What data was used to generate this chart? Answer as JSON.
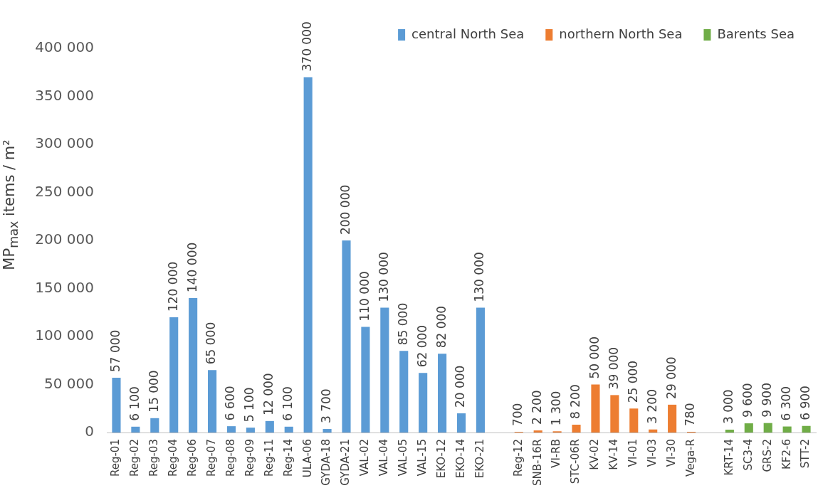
{
  "chart_data": {
    "type": "bar",
    "ylabel": "MP$_{max}$ items / m²",
    "categories": [
      "Reg-01",
      "Reg-02",
      "Reg-03",
      "Reg-04",
      "Reg-06",
      "Reg-07",
      "Reg-08",
      "Reg-09",
      "Reg-11",
      "Reg-14",
      "ULA-06",
      "GYDA-18",
      "GYDA-21",
      "VAL-02",
      "VAL-04",
      "VAL-05",
      "VAL-15",
      "EKO-12",
      "EKO-14",
      "EKO-21",
      null,
      "Reg-12",
      "SNB-16R",
      "VI-RB",
      "STC-06R",
      "KV-02",
      "KV-14",
      "VI-01",
      "VI-03",
      "VI-30",
      "Vega-R",
      null,
      "KRT-14",
      "SC3-4",
      "GRS-2",
      "KF2-6",
      "STT-2"
    ],
    "series": [
      {
        "name": "central North Sea",
        "color": "#5b9bd5",
        "values": [
          57000,
          6100,
          15000,
          120000,
          140000,
          65000,
          6600,
          5100,
          12000,
          6100,
          370000,
          3700,
          200000,
          110000,
          130000,
          85000,
          62000,
          82000,
          20000,
          130000,
          null,
          null,
          null,
          null,
          null,
          null,
          null,
          null,
          null,
          null,
          null,
          null,
          null,
          null,
          null,
          null,
          null
        ]
      },
      {
        "name": "northern North Sea",
        "color": "#ed7d31",
        "values": [
          null,
          null,
          null,
          null,
          null,
          null,
          null,
          null,
          null,
          null,
          null,
          null,
          null,
          null,
          null,
          null,
          null,
          null,
          null,
          null,
          null,
          700,
          2200,
          1300,
          8200,
          50000,
          39000,
          25000,
          3200,
          29000,
          780,
          null,
          null,
          null,
          null,
          null,
          null
        ]
      },
      {
        "name": "Barents Sea",
        "color": "#70ad47",
        "values": [
          null,
          null,
          null,
          null,
          null,
          null,
          null,
          null,
          null,
          null,
          null,
          null,
          null,
          null,
          null,
          null,
          null,
          null,
          null,
          null,
          null,
          null,
          null,
          null,
          null,
          null,
          null,
          null,
          null,
          null,
          null,
          null,
          3000,
          9600,
          9900,
          6300,
          6900
        ]
      }
    ],
    "ylim": [
      0,
      400000
    ],
    "yticks": [
      {
        "value": 0,
        "label": "0"
      },
      {
        "value": 50000,
        "label": "50 000"
      },
      {
        "value": 100000,
        "label": "100 000"
      },
      {
        "value": 150000,
        "label": "150 000"
      },
      {
        "value": 200000,
        "label": "200 000"
      },
      {
        "value": 250000,
        "label": "250 000"
      },
      {
        "value": 300000,
        "label": "300 000"
      },
      {
        "value": 350000,
        "label": "350 000"
      },
      {
        "value": 400000,
        "label": "400 000"
      }
    ],
    "grid": false,
    "legend": "top right",
    "data_labels": true
  }
}
